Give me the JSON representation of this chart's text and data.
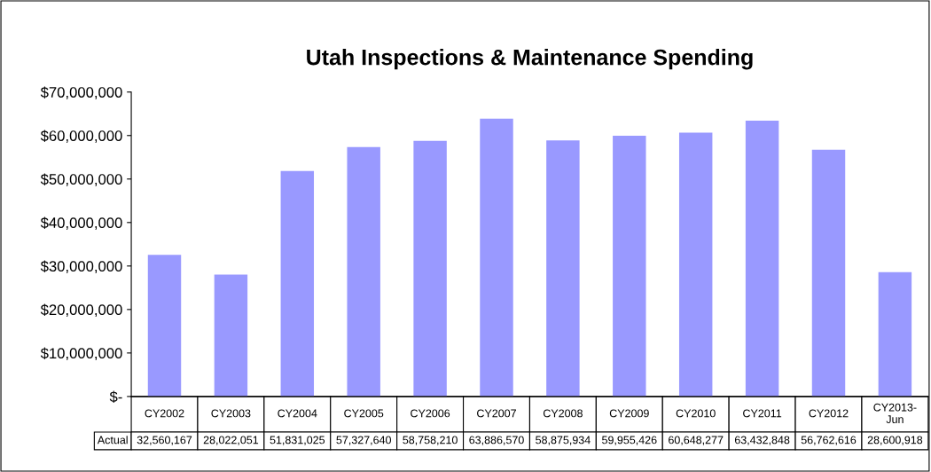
{
  "chart_data": {
    "type": "bar",
    "title": "Utah Inspections & Maintenance Spending",
    "categories": [
      "CY2002",
      "CY2003",
      "CY2004",
      "CY2005",
      "CY2006",
      "CY2007",
      "CY2008",
      "CY2009",
      "CY2010",
      "CY2011",
      "CY2012",
      "CY2013-\nJun"
    ],
    "series": [
      {
        "name": "Actual",
        "color": "#9999ff",
        "values": [
          32560167,
          28022051,
          51831025,
          57327640,
          58758210,
          63886570,
          58875934,
          59955426,
          60648277,
          63432848,
          56762616,
          28600918
        ],
        "value_labels": [
          "32,560,167",
          "28,022,051",
          "51,831,025",
          "57,327,640",
          "58,758,210",
          "63,886,570",
          "58,875,934",
          "59,955,426",
          "60,648,277",
          "63,432,848",
          "56,762,616",
          "28,600,918"
        ]
      }
    ],
    "ylim": [
      0,
      70000000
    ],
    "yticks": [
      {
        "value": 0,
        "label": "$-"
      },
      {
        "value": 10000000,
        "label": "$10,000,000"
      },
      {
        "value": 20000000,
        "label": "$20,000,000"
      },
      {
        "value": 30000000,
        "label": "$30,000,000"
      },
      {
        "value": 40000000,
        "label": "$40,000,000"
      },
      {
        "value": 50000000,
        "label": "$50,000,000"
      },
      {
        "value": 60000000,
        "label": "$60,000,000"
      },
      {
        "value": 70000000,
        "label": "$70,000,000"
      }
    ],
    "grid": false,
    "legend": false
  }
}
